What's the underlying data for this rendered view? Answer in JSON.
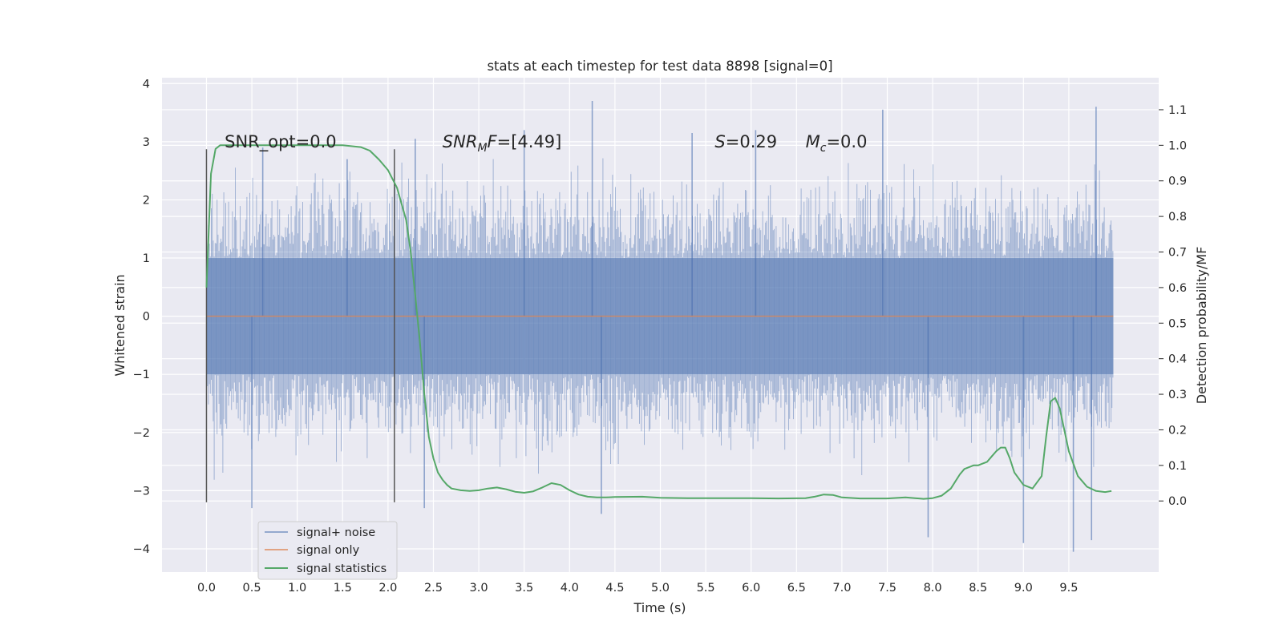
{
  "chart_data": {
    "type": "line",
    "title": "stats at each timestep for test data 8898 [signal=0]",
    "xlabel": "Time (s)",
    "ylabel": "Whitened strain",
    "y2label": "Detection probability/MF",
    "xlim": [
      -0.49,
      10.49
    ],
    "ylim": [
      -4.4,
      4.1
    ],
    "y2lim": [
      -0.2,
      1.19
    ],
    "xticks": [
      0.0,
      0.5,
      1.0,
      1.5,
      2.0,
      2.5,
      3.0,
      3.5,
      4.0,
      4.5,
      5.0,
      5.5,
      6.0,
      6.5,
      7.0,
      7.5,
      8.0,
      8.5,
      9.0,
      9.5
    ],
    "xticklabels": [
      "0.0",
      "0.5",
      "1.0",
      "1.5",
      "2.0",
      "2.5",
      "3.0",
      "3.5",
      "4.0",
      "4.5",
      "5.0",
      "5.5",
      "6.0",
      "6.5",
      "7.0",
      "7.5",
      "8.0",
      "8.5",
      "9.0",
      "9.5"
    ],
    "yticks": [
      -4,
      -3,
      -2,
      -1,
      0,
      1,
      2,
      3,
      4
    ],
    "yticklabels": [
      "−4",
      "−3",
      "−2",
      "−1",
      "0",
      "1",
      "2",
      "3",
      "4"
    ],
    "y2ticks": [
      0.0,
      0.1,
      0.2,
      0.3,
      0.4,
      0.5,
      0.6,
      0.7,
      0.8,
      0.9,
      1.0,
      1.1
    ],
    "y2ticklabels": [
      "0.0",
      "0.1",
      "0.2",
      "0.3",
      "0.4",
      "0.5",
      "0.6",
      "0.7",
      "0.8",
      "0.9",
      "1.0",
      "1.1"
    ],
    "grid": true,
    "legend_position": "lower-left",
    "series": [
      {
        "name": "signal+ noise",
        "color": "#4c72b0",
        "axis": "left",
        "x_range": [
          0.0,
          9.99
        ],
        "typical_band": [
          -1.0,
          1.0
        ],
        "peaks": [
          {
            "x": 0.62,
            "y": 2.9
          },
          {
            "x": 1.55,
            "y": 2.7
          },
          {
            "x": 2.3,
            "y": 3.05
          },
          {
            "x": 3.5,
            "y": 3.2
          },
          {
            "x": 4.25,
            "y": 3.7
          },
          {
            "x": 5.35,
            "y": 3.15
          },
          {
            "x": 6.05,
            "y": 3.2
          },
          {
            "x": 7.45,
            "y": 3.55
          },
          {
            "x": 9.8,
            "y": 3.6
          },
          {
            "x": 0.5,
            "y": -3.3
          },
          {
            "x": 2.4,
            "y": -3.3
          },
          {
            "x": 4.35,
            "y": -3.4
          },
          {
            "x": 7.95,
            "y": -3.8
          },
          {
            "x": 9.0,
            "y": -3.9
          },
          {
            "x": 9.55,
            "y": -4.05
          },
          {
            "x": 9.75,
            "y": -3.85
          }
        ]
      },
      {
        "name": "signal only",
        "color": "#dd8452",
        "axis": "left",
        "x": [
          0.0,
          9.99
        ],
        "y": [
          0.0,
          0.0
        ]
      },
      {
        "name": "signal statistics",
        "color": "#55a868",
        "axis": "right",
        "x": [
          0.0,
          0.05,
          0.1,
          0.15,
          0.2,
          0.3,
          0.5,
          0.8,
          1.0,
          1.2,
          1.5,
          1.7,
          1.8,
          1.9,
          2.0,
          2.1,
          2.2,
          2.25,
          2.3,
          2.35,
          2.4,
          2.45,
          2.5,
          2.55,
          2.6,
          2.65,
          2.7,
          2.8,
          2.9,
          3.0,
          3.1,
          3.2,
          3.3,
          3.4,
          3.5,
          3.6,
          3.7,
          3.8,
          3.9,
          4.0,
          4.1,
          4.2,
          4.3,
          4.4,
          4.5,
          4.8,
          5.0,
          5.3,
          5.6,
          6.0,
          6.3,
          6.6,
          6.7,
          6.8,
          6.9,
          7.0,
          7.2,
          7.5,
          7.7,
          7.9,
          8.0,
          8.1,
          8.2,
          8.3,
          8.35,
          8.45,
          8.5,
          8.55,
          8.6,
          8.65,
          8.7,
          8.75,
          8.8,
          8.85,
          8.9,
          9.0,
          9.1,
          9.2,
          9.25,
          9.3,
          9.35,
          9.4,
          9.5,
          9.6,
          9.7,
          9.8,
          9.9,
          9.97
        ],
        "y": [
          0.6,
          0.92,
          0.99,
          1.0,
          1.0,
          1.0,
          1.0,
          1.0,
          1.0,
          1.0,
          1.0,
          0.995,
          0.985,
          0.96,
          0.93,
          0.88,
          0.79,
          0.7,
          0.58,
          0.45,
          0.3,
          0.18,
          0.12,
          0.08,
          0.06,
          0.045,
          0.035,
          0.03,
          0.028,
          0.03,
          0.035,
          0.038,
          0.033,
          0.026,
          0.023,
          0.027,
          0.038,
          0.05,
          0.045,
          0.03,
          0.018,
          0.012,
          0.01,
          0.01,
          0.011,
          0.012,
          0.009,
          0.008,
          0.008,
          0.008,
          0.007,
          0.008,
          0.012,
          0.018,
          0.017,
          0.01,
          0.007,
          0.007,
          0.01,
          0.006,
          0.008,
          0.015,
          0.035,
          0.075,
          0.09,
          0.1,
          0.1,
          0.105,
          0.11,
          0.125,
          0.14,
          0.15,
          0.15,
          0.12,
          0.08,
          0.045,
          0.035,
          0.07,
          0.18,
          0.28,
          0.29,
          0.26,
          0.14,
          0.07,
          0.04,
          0.028,
          0.025,
          0.028
        ]
      }
    ],
    "vlines": [
      {
        "x": 0.0,
        "ymin": -3.2,
        "ymax": 2.87,
        "color": "#555555"
      },
      {
        "x": 2.07,
        "ymin": -3.2,
        "ymax": 2.87,
        "color": "#555555"
      }
    ],
    "annotations": [
      {
        "id": "snr_opt",
        "plain": "SNR_opt=0.0",
        "x": 0.2,
        "y": 3.0
      },
      {
        "id": "snr_mf",
        "prefix": "SNR",
        "sub": "M",
        "suffix": "F=[4.49]",
        "x": 2.6,
        "y": 3.0
      },
      {
        "id": "s",
        "prefix": "S",
        "suffix": "=0.29",
        "x": 5.6,
        "y": 3.0
      },
      {
        "id": "mc",
        "prefix": "M",
        "sub": "c",
        "suffix": "=0.0",
        "x": 6.6,
        "y": 3.0
      }
    ]
  }
}
